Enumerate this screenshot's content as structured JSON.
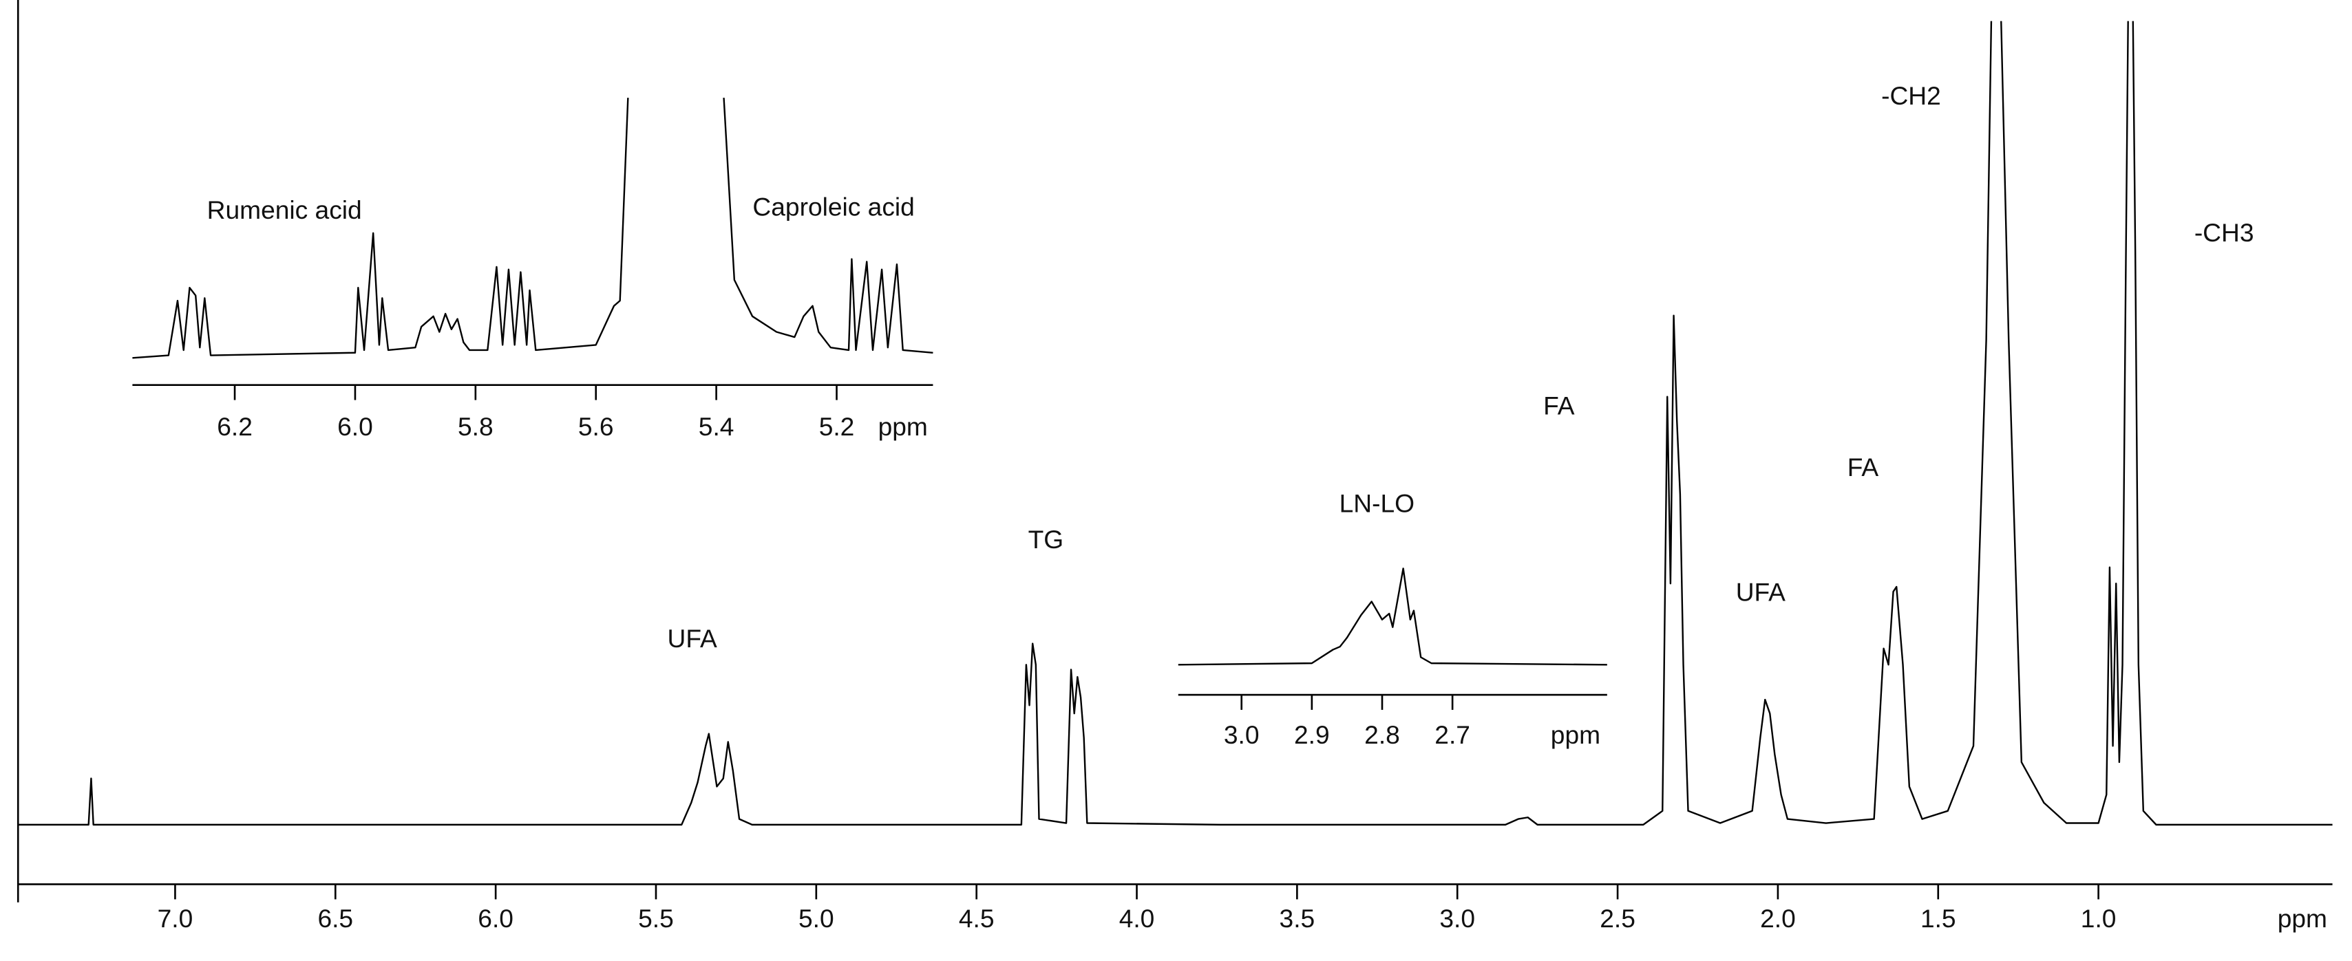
{
  "chart_data": [
    {
      "type": "line",
      "x_label": "ppm",
      "color": "#000000",
      "xlim": [
        7.49,
        0.27
      ],
      "ylim": [
        0,
        100
      ],
      "xticks": [
        {
          "value": 7.0,
          "label": "7.0"
        },
        6.5,
        {
          "value": 6.0,
          "label": "6.0"
        },
        5.5,
        {
          "value": 5.0,
          "label": "5.0"
        },
        4.5,
        {
          "value": 4.0,
          "label": "4.0"
        },
        3.5,
        {
          "value": 3.0,
          "label": "3.0"
        },
        2.5,
        {
          "value": 2.0,
          "label": "2.0"
        },
        1.5,
        {
          "value": 1.0,
          "label": "1.0"
        }
      ],
      "annotations": [
        "UFA",
        "TG",
        "LN-LO",
        "FA",
        "UFA",
        "FA",
        "-CH2",
        "-CH3"
      ],
      "x": [
        7.49,
        7.27,
        7.262,
        7.255,
        5.42,
        5.39,
        5.37,
        5.345,
        5.335,
        5.31,
        5.29,
        5.275,
        5.26,
        5.24,
        5.2,
        4.36,
        4.345,
        4.335,
        4.325,
        4.315,
        4.305,
        4.22,
        4.205,
        4.195,
        4.185,
        4.175,
        4.165,
        4.155,
        3.74,
        2.85,
        2.81,
        2.78,
        2.75,
        2.42,
        2.36,
        2.345,
        2.335,
        2.325,
        2.315,
        2.305,
        2.295,
        2.28,
        2.18,
        2.08,
        2.055,
        2.04,
        2.025,
        2.01,
        1.99,
        1.97,
        1.85,
        1.7,
        1.68,
        1.67,
        1.655,
        1.64,
        1.63,
        1.61,
        1.59,
        1.55,
        1.47,
        1.39,
        1.35,
        1.33,
        1.31,
        1.28,
        1.24,
        1.17,
        1.1,
        1.0,
        0.975,
        0.965,
        0.955,
        0.945,
        0.935,
        0.925,
        0.915,
        0.905,
        0.895,
        0.885,
        0.875,
        0.86,
        0.82,
        0.27
      ],
      "values": [
        0.3,
        0.3,
        6,
        0.3,
        0.3,
        3,
        5.5,
        10,
        11.5,
        5,
        6,
        10.5,
        7,
        1,
        0.3,
        0.3,
        20,
        15,
        22.6,
        20,
        1,
        0.5,
        19.4,
        14,
        18.5,
        16,
        11,
        0.5,
        0.3,
        0.3,
        1,
        1.2,
        0.3,
        0.3,
        2,
        53,
        30,
        63,
        50,
        41,
        20,
        2,
        0.5,
        2,
        11,
        15.7,
        14,
        9,
        4,
        1,
        0.5,
        1,
        15,
        22,
        20,
        29,
        29.6,
        20,
        5,
        1,
        2,
        10,
        60,
        110,
        110,
        60,
        8,
        3,
        0.5,
        0.5,
        4,
        32,
        10,
        30,
        8,
        20,
        67,
        110,
        110,
        71,
        20,
        2,
        0.3,
        0.3
      ]
    },
    {
      "type": "line",
      "x_label": "ppm",
      "color": "#000000",
      "xlim": [
        6.37,
        5.04
      ],
      "ylim": [
        0,
        100
      ],
      "xticks": [
        6.2,
        {
          "value": 6.0,
          "label": "6.0"
        },
        5.8,
        5.6,
        5.4,
        5.2
      ],
      "annotations": [
        "Rumenic acid",
        "Caproleic acid"
      ],
      "x": [
        6.37,
        6.31,
        6.295,
        6.285,
        6.275,
        6.265,
        6.258,
        6.25,
        6.24,
        6.0,
        5.995,
        5.985,
        5.97,
        5.96,
        5.955,
        5.945,
        5.9,
        5.89,
        5.87,
        5.86,
        5.85,
        5.84,
        5.83,
        5.82,
        5.81,
        5.78,
        5.765,
        5.755,
        5.745,
        5.735,
        5.725,
        5.715,
        5.71,
        5.7,
        5.6,
        5.57,
        5.56,
        5.545,
        5.39,
        5.37,
        5.34,
        5.3,
        5.27,
        5.255,
        5.24,
        5.23,
        5.21,
        5.18,
        5.175,
        5.168,
        5.15,
        5.14,
        5.125,
        5.115,
        5.1,
        5.09,
        5.04
      ],
      "values": [
        0,
        1,
        22,
        3,
        27,
        24,
        4,
        23,
        1,
        2,
        27,
        3,
        48,
        5,
        23,
        3,
        4,
        12,
        16,
        10,
        17,
        11,
        15,
        6,
        3,
        3,
        35,
        5,
        34,
        5,
        33,
        5,
        26,
        3,
        5,
        20,
        22,
        110,
        110,
        30,
        16,
        10,
        8,
        16,
        20,
        10,
        4,
        3,
        38,
        3,
        37,
        3,
        34,
        4,
        36,
        3,
        2
      ]
    },
    {
      "type": "line",
      "x_label": "ppm",
      "color": "#000000",
      "xlim": [
        3.09,
        2.48
      ],
      "ylim": [
        0,
        100
      ],
      "xticks": [
        {
          "value": 3.0,
          "label": "3.0"
        },
        2.9,
        2.8,
        2.7
      ],
      "annotations": [],
      "x": [
        3.09,
        2.9,
        2.87,
        2.86,
        2.85,
        2.83,
        2.815,
        2.8,
        2.79,
        2.785,
        2.77,
        2.76,
        2.755,
        2.745,
        2.73,
        2.48
      ],
      "values": [
        0,
        1,
        10,
        12,
        18,
        33,
        42,
        30,
        34,
        25,
        64,
        30,
        36,
        5,
        1,
        0
      ]
    }
  ]
}
